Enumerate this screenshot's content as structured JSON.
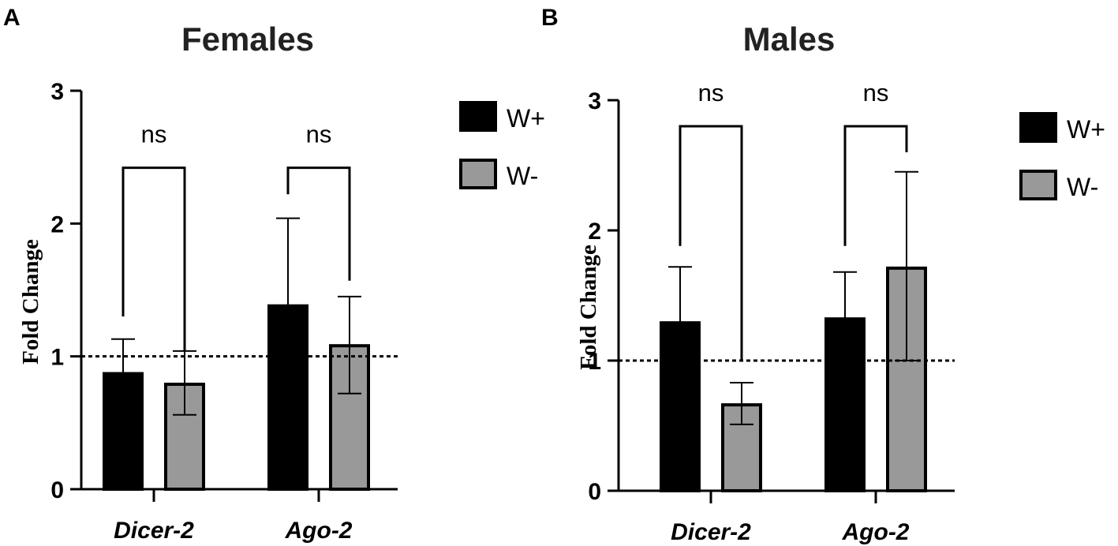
{
  "chart_data": [
    {
      "panel": "A",
      "type": "bar",
      "title": "Females",
      "xlabel": "",
      "ylabel": "Fold Change",
      "ylim": [
        0,
        3
      ],
      "yticks": [
        "0",
        "1",
        "2",
        "3"
      ],
      "categories": [
        "Dicer-2",
        "Ago-2"
      ],
      "series": [
        {
          "name": "W+",
          "color": "#000000",
          "values": [
            0.87,
            1.38
          ],
          "error_upper": [
            1.13,
            2.04
          ],
          "error_lower": [
            0.87,
            1.38
          ]
        },
        {
          "name": "W-",
          "color": "#999999",
          "values": [
            0.79,
            1.08
          ],
          "error_upper": [
            1.04,
            1.45
          ],
          "error_lower": [
            0.56,
            0.72
          ]
        }
      ],
      "reference_line": 1,
      "significance": [
        {
          "category": "Dicer-2",
          "label": "ns",
          "left_y": 1.3,
          "right_y": 1.04,
          "top_y": 2.42
        },
        {
          "category": "Ago-2",
          "label": "ns",
          "left_y": 2.22,
          "right_y": 1.57,
          "top_y": 2.42
        }
      ]
    },
    {
      "panel": "B",
      "type": "bar",
      "title": "Males",
      "xlabel": "",
      "ylabel": "Fold Change",
      "ylim": [
        0,
        3
      ],
      "yticks": [
        "0",
        "1",
        "2",
        "3"
      ],
      "categories": [
        "Dicer-2",
        "Ago-2"
      ],
      "series": [
        {
          "name": "W+",
          "color": "#000000",
          "values": [
            1.29,
            1.32
          ],
          "error_upper": [
            1.72,
            1.68
          ],
          "error_lower": [
            1.29,
            1.32
          ]
        },
        {
          "name": "W-",
          "color": "#999999",
          "values": [
            0.66,
            1.71
          ],
          "error_upper": [
            0.83,
            2.45
          ],
          "error_lower": [
            0.51,
            1.0
          ]
        }
      ],
      "reference_line": 1,
      "significance": [
        {
          "category": "Dicer-2",
          "label": "ns",
          "left_y": 1.88,
          "right_y": 1.0,
          "top_y": 2.8
        },
        {
          "category": "Ago-2",
          "label": "ns",
          "left_y": 1.88,
          "right_y": 2.6,
          "top_y": 2.8
        }
      ]
    }
  ]
}
